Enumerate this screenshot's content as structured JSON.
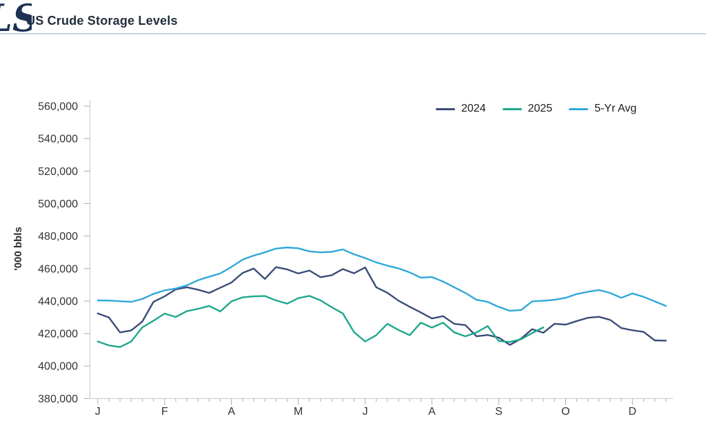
{
  "header": {
    "logo_text": "LS",
    "title": "US Crude Storage Levels"
  },
  "chart": {
    "y_axis_title": "'000 bbls",
    "y_ticks": [
      {
        "value": 380000,
        "label": "380,000"
      },
      {
        "value": 400000,
        "label": "400,000"
      },
      {
        "value": 420000,
        "label": "420,000"
      },
      {
        "value": 440000,
        "label": "440,000"
      },
      {
        "value": 460000,
        "label": "460,000"
      },
      {
        "value": 480000,
        "label": "480,000"
      },
      {
        "value": 500000,
        "label": "500,000"
      },
      {
        "value": 520000,
        "label": "520,000"
      },
      {
        "value": 540000,
        "label": "540,000"
      },
      {
        "value": 560000,
        "label": "560,000"
      }
    ]
  },
  "colors": {
    "line_2024": "#3A4C77",
    "line_2025": "#1CA78C",
    "line_5yr_avg": "#2FA8D9",
    "divider": "#C8D4E0",
    "logo": "#1E3254",
    "axis": "#CBCBCB",
    "tick": "#ADADAD",
    "axis_text": "#333333"
  },
  "chart_data": {
    "type": "line",
    "title": "US Crude Storage Levels",
    "xlabel": "",
    "ylabel": "'000 bbls",
    "ylim": [
      380000,
      560000
    ],
    "y_tick_step": 20000,
    "grid": false,
    "legend_position": "top-right",
    "x_unit": "week-of-year",
    "x_range": [
      1,
      52
    ],
    "x_tick_labels": [
      "J",
      "F",
      "A",
      "M",
      "J",
      "A",
      "S",
      "O",
      "D"
    ],
    "x_tick_weeks": [
      1,
      7,
      13,
      19,
      25,
      31,
      37,
      43,
      49
    ],
    "series": [
      {
        "name": "2024",
        "color": "#3A4C77",
        "start_week": 1,
        "values": [
          432400,
          429900,
          420700,
          421900,
          427400,
          439500,
          442900,
          447200,
          448500,
          447000,
          445000,
          448200,
          451400,
          457300,
          460000,
          453600,
          460900,
          459500,
          457000,
          458800,
          454700,
          455900,
          459700,
          457100,
          460700,
          448500,
          445100,
          440200,
          436500,
          433000,
          429300,
          430700,
          426000,
          425200,
          418300,
          419100,
          417500,
          413000,
          416900,
          422700,
          420500,
          426000,
          425500,
          427700,
          429700,
          430300,
          428400,
          423400,
          422000,
          421000,
          415800,
          415600
        ]
      },
      {
        "name": "2025",
        "color": "#1CA78C",
        "start_week": 1,
        "values": [
          415100,
          412700,
          411700,
          415100,
          423800,
          427900,
          432300,
          430200,
          433800,
          435200,
          437000,
          433600,
          439800,
          442300,
          442900,
          443100,
          440400,
          438400,
          441800,
          443200,
          440400,
          436200,
          432400,
          420900,
          415100,
          419000,
          426000,
          422200,
          419000,
          426700,
          423700,
          426700,
          420700,
          418300,
          420700,
          424600,
          415400,
          414800,
          416500,
          420300,
          423800
        ]
      },
      {
        "name": "5-Yr Avg",
        "color": "#2FA8D9",
        "start_week": 1,
        "values": [
          440400,
          440300,
          439900,
          439500,
          441300,
          444400,
          446600,
          447700,
          449700,
          452800,
          455000,
          457000,
          461000,
          465500,
          468000,
          470000,
          472300,
          473000,
          472500,
          470600,
          470000,
          470300,
          471800,
          468800,
          466500,
          463800,
          461800,
          460100,
          457600,
          454400,
          454800,
          452000,
          448500,
          445000,
          440800,
          439500,
          436400,
          434000,
          434500,
          439800,
          440200,
          440800,
          442000,
          444300,
          445700,
          446800,
          445000,
          442000,
          444700,
          442600,
          439800,
          437000
        ]
      }
    ]
  }
}
